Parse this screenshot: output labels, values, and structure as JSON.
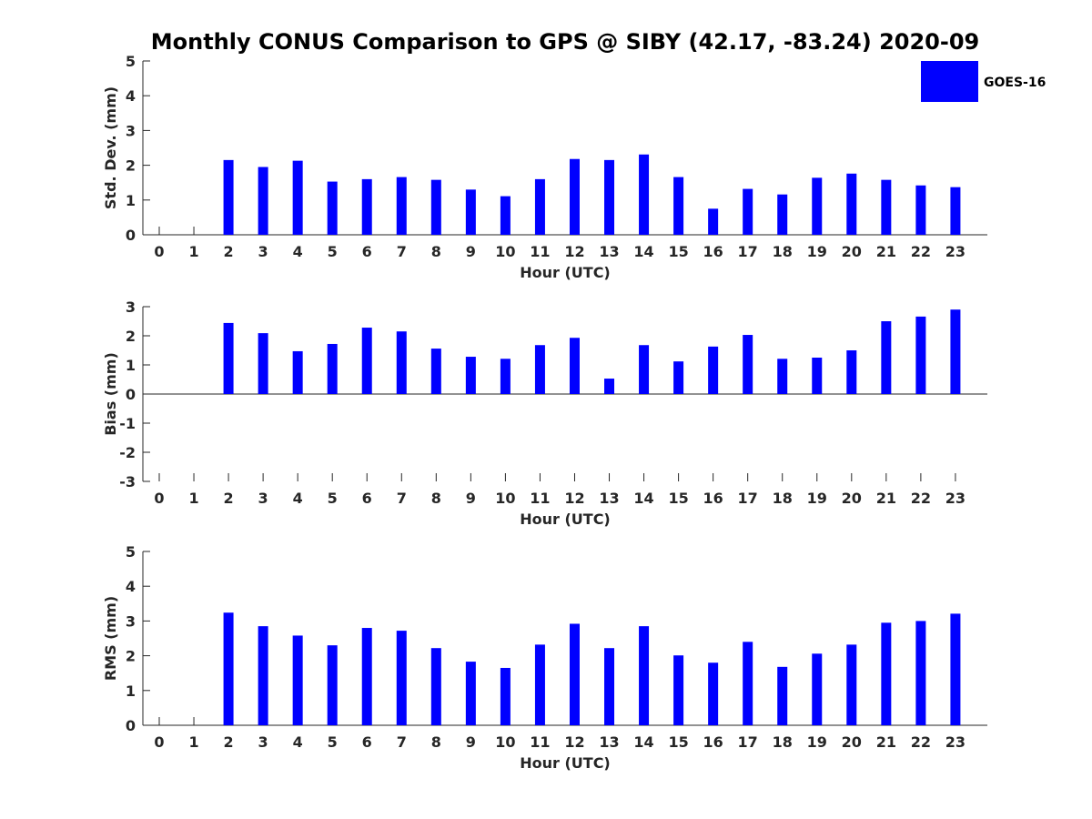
{
  "figure_title": "Monthly CONUS Comparison to GPS @ SIBY (42.17, -83.24) 2020-09",
  "legend": {
    "label": "GOES-16",
    "color": "#0000ff"
  },
  "chart_data": [
    {
      "type": "bar",
      "title": "",
      "xlabel": "Hour (UTC)",
      "ylabel": "Std. Dev. (mm)",
      "ylim": [
        0,
        5
      ],
      "yticks": [
        "0",
        "1",
        "2",
        "3",
        "4",
        "5"
      ],
      "categories": [
        "0",
        "1",
        "2",
        "3",
        "4",
        "5",
        "6",
        "7",
        "8",
        "9",
        "10",
        "11",
        "12",
        "13",
        "14",
        "15",
        "16",
        "17",
        "18",
        "19",
        "20",
        "21",
        "22",
        "23"
      ],
      "series": [
        {
          "name": "GOES-16",
          "color": "#0000ff",
          "values": [
            null,
            null,
            2.15,
            1.95,
            2.13,
            1.53,
            1.6,
            1.66,
            1.58,
            1.3,
            1.11,
            1.6,
            2.18,
            2.15,
            2.31,
            1.66,
            0.75,
            1.32,
            1.16,
            1.64,
            1.76,
            1.58,
            1.42,
            1.37
          ]
        }
      ]
    },
    {
      "type": "bar",
      "title": "",
      "xlabel": "Hour (UTC)",
      "ylabel": "Bias (mm)",
      "ylim": [
        -3,
        3
      ],
      "yticks": [
        "-3",
        "-2",
        "-1",
        "0",
        "1",
        "2",
        "3"
      ],
      "categories": [
        "0",
        "1",
        "2",
        "3",
        "4",
        "5",
        "6",
        "7",
        "8",
        "9",
        "10",
        "11",
        "12",
        "13",
        "14",
        "15",
        "16",
        "17",
        "18",
        "19",
        "20",
        "21",
        "22",
        "23"
      ],
      "series": [
        {
          "name": "GOES-16",
          "color": "#0000ff",
          "values": [
            null,
            null,
            2.44,
            2.09,
            1.47,
            1.72,
            2.28,
            2.15,
            1.56,
            1.28,
            1.21,
            1.68,
            1.93,
            0.53,
            1.68,
            1.12,
            1.63,
            2.03,
            1.21,
            1.25,
            1.5,
            2.5,
            2.66,
            2.9
          ]
        }
      ]
    },
    {
      "type": "bar",
      "title": "",
      "xlabel": "Hour (UTC)",
      "ylabel": "RMS (mm)",
      "ylim": [
        0,
        5
      ],
      "yticks": [
        "0",
        "1",
        "2",
        "3",
        "4",
        "5"
      ],
      "categories": [
        "0",
        "1",
        "2",
        "3",
        "4",
        "5",
        "6",
        "7",
        "8",
        "9",
        "10",
        "11",
        "12",
        "13",
        "14",
        "15",
        "16",
        "17",
        "18",
        "19",
        "20",
        "21",
        "22",
        "23"
      ],
      "series": [
        {
          "name": "GOES-16",
          "color": "#0000ff",
          "values": [
            null,
            null,
            3.24,
            2.85,
            2.58,
            2.3,
            2.8,
            2.72,
            2.22,
            1.83,
            1.65,
            2.32,
            2.92,
            2.22,
            2.85,
            2.01,
            1.8,
            2.4,
            1.68,
            2.06,
            2.32,
            2.95,
            3.0,
            3.21
          ]
        }
      ]
    }
  ]
}
